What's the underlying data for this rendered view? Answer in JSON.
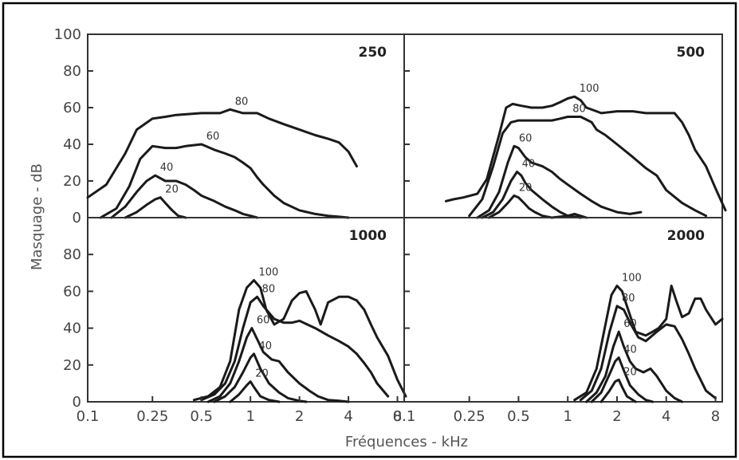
{
  "chart_data": {
    "type": "line",
    "xlabel": "Fréquences - kHz",
    "ylabel": "Masquage - dB",
    "x_scale": "log",
    "ylim": [
      0,
      100
    ],
    "grid": false,
    "x_ticks": [
      "0.1",
      "0.25",
      "0.5",
      "1",
      "2",
      "4",
      "8"
    ],
    "x_tick_values": [
      0.1,
      0.25,
      0.5,
      1,
      2,
      4,
      8
    ],
    "y_ticks_top": [
      "0",
      "20",
      "40",
      "60",
      "80",
      "100"
    ],
    "y_ticks_bottom": [
      "0",
      "20",
      "40",
      "60",
      "80"
    ],
    "panels": [
      {
        "title": "250",
        "xlim": [
          0.1,
          8.8
        ],
        "series": [
          {
            "name": "80",
            "x": [
              0.1,
              0.13,
              0.17,
              0.2,
              0.25,
              0.3,
              0.35,
              0.5,
              0.65,
              0.75,
              0.9,
              1.1,
              1.3,
              1.6,
              2,
              2.5,
              3,
              3.5,
              4,
              4.5
            ],
            "values": [
              11,
              18,
              35,
              48,
              54,
              55,
              56,
              57,
              57,
              59,
              57,
              57,
              54,
              51,
              48,
              45,
              43,
              41,
              36,
              28
            ]
          },
          {
            "name": "60",
            "x": [
              0.12,
              0.15,
              0.18,
              0.21,
              0.25,
              0.3,
              0.35,
              0.4,
              0.5,
              0.6,
              0.7,
              0.8,
              0.9,
              1,
              1.1,
              1.2,
              1.4,
              1.6,
              2,
              2.5,
              3,
              3.5,
              4
            ],
            "values": [
              0,
              5,
              17,
              32,
              39,
              38,
              38,
              39,
              40,
              37,
              35,
              33,
              30,
              27,
              22,
              18,
              12,
              8,
              4,
              2,
              1,
              0.5,
              0
            ]
          },
          {
            "name": "40",
            "x": [
              0.14,
              0.17,
              0.2,
              0.23,
              0.26,
              0.3,
              0.35,
              0.4,
              0.45,
              0.5,
              0.6,
              0.7,
              0.8,
              0.9,
              1,
              1.1
            ],
            "values": [
              0,
              6,
              14,
              20,
              23,
              20,
              20,
              18,
              15,
              12,
              9,
              6,
              4,
              2,
              1,
              0
            ]
          },
          {
            "name": "20",
            "x": [
              0.17,
              0.2,
              0.23,
              0.26,
              0.28,
              0.3,
              0.33,
              0.36,
              0.4
            ],
            "values": [
              0,
              3,
              7,
              10,
              11,
              8,
              4,
              1,
              0
            ]
          }
        ]
      },
      {
        "title": "500",
        "xlim": [
          0.1,
          8.8
        ],
        "series": [
          {
            "name": "100",
            "x": [
              0.18,
              0.2,
              0.23,
              0.28,
              0.32,
              0.38,
              0.42,
              0.46,
              0.52,
              0.6,
              0.7,
              0.8,
              0.9,
              1,
              1.1,
              1.2,
              1.3,
              1.5,
              1.6,
              2,
              2.5,
              3,
              3.5,
              4,
              4.5,
              5,
              5.5,
              6,
              7,
              8,
              9.2
            ],
            "values": [
              9,
              10,
              11,
              13,
              21,
              45,
              60,
              62,
              61,
              60,
              60,
              61,
              63,
              65,
              66,
              64,
              60,
              58,
              57,
              58,
              58,
              57,
              57,
              57,
              57,
              52,
              45,
              37,
              28,
              16,
              4
            ]
          },
          {
            "name": "80",
            "x": [
              0.25,
              0.3,
              0.35,
              0.4,
              0.45,
              0.5,
              0.6,
              0.7,
              0.8,
              0.9,
              1,
              1.2,
              1.4,
              1.5,
              1.7,
              2,
              2.5,
              3,
              3.5,
              4,
              5,
              6,
              7
            ],
            "values": [
              1,
              10,
              28,
              46,
              52,
              53,
              53,
              53,
              53,
              54,
              55,
              55,
              52,
              48,
              45,
              40,
              33,
              27,
              23,
              15,
              8,
              4,
              1
            ]
          },
          {
            "name": "60",
            "x": [
              0.28,
              0.33,
              0.38,
              0.43,
              0.47,
              0.5,
              0.55,
              0.6,
              0.7,
              0.8,
              0.9,
              1,
              1.2,
              1.4,
              1.6,
              2,
              2.4,
              2.8
            ],
            "values": [
              0,
              4,
              14,
              30,
              39,
              38,
              33,
              30,
              28,
              25,
              21,
              18,
              13,
              9,
              6,
              3,
              2,
              3
            ]
          },
          {
            "name": "40",
            "x": [
              0.3,
              0.35,
              0.4,
              0.45,
              0.49,
              0.52,
              0.55,
              0.6,
              0.7,
              0.8,
              0.9,
              1,
              1.1,
              1.3
            ],
            "values": [
              0,
              3,
              10,
              20,
              25,
              23,
              19,
              15,
              10,
              6,
              3,
              1,
              2,
              0
            ]
          },
          {
            "name": "20",
            "x": [
              0.33,
              0.38,
              0.43,
              0.47,
              0.5,
              0.54,
              0.58,
              0.63,
              0.7,
              0.8,
              1,
              1.2
            ],
            "values": [
              0,
              3,
              8,
              12,
              11,
              8,
              5,
              3,
              1,
              0,
              1,
              0
            ]
          }
        ]
      },
      {
        "title": "1000",
        "xlim": [
          0.1,
          8.8
        ],
        "series": [
          {
            "name": "100",
            "x": [
              0.45,
              0.55,
              0.65,
              0.75,
              0.85,
              0.95,
              1.05,
              1.15,
              1.25,
              1.4,
              1.6,
              1.8,
              2,
              2.2,
              2.5,
              2.7,
              3,
              3.5,
              4,
              4.5,
              5,
              5.5,
              6,
              7,
              8,
              9
            ],
            "values": [
              1,
              3,
              8,
              22,
              50,
              62,
              66,
              62,
              50,
              42,
              45,
              55,
              59,
              60,
              50,
              42,
              54,
              57,
              57,
              55,
              50,
              42,
              35,
              25,
              12,
              3
            ]
          },
          {
            "name": "80",
            "x": [
              0.5,
              0.6,
              0.7,
              0.8,
              0.9,
              1,
              1.1,
              1.2,
              1.4,
              1.6,
              1.8,
              2,
              2.5,
              3,
              3.5,
              4,
              4.5,
              5,
              5.5,
              6,
              7
            ],
            "values": [
              1,
              4,
              10,
              22,
              40,
              54,
              57,
              52,
              45,
              43,
              43,
              44,
              40,
              36,
              33,
              30,
              26,
              21,
              16,
              10,
              3
            ]
          },
          {
            "name": "60",
            "x": [
              0.55,
              0.65,
              0.75,
              0.85,
              0.95,
              1.02,
              1.1,
              1.2,
              1.35,
              1.5,
              1.7,
              2,
              2.3,
              2.6,
              3,
              3.5,
              4
            ],
            "values": [
              0,
              3,
              10,
              22,
              35,
              40,
              34,
              27,
              23,
              22,
              16,
              10,
              6,
              3,
              1,
              0.5,
              0
            ]
          },
          {
            "name": "40",
            "x": [
              0.6,
              0.7,
              0.8,
              0.9,
              1,
              1.05,
              1.15,
              1.3,
              1.5,
              1.7,
              2,
              2.2
            ],
            "values": [
              0,
              3,
              8,
              16,
              24,
              26,
              18,
              10,
              5,
              2,
              0.5,
              0
            ]
          },
          {
            "name": "20",
            "x": [
              0.75,
              0.85,
              0.95,
              1,
              1.05,
              1.15,
              1.3,
              1.5
            ],
            "values": [
              0,
              4,
              9,
              11,
              8,
              3,
              1,
              0
            ]
          }
        ]
      },
      {
        "title": "2000",
        "xlim": [
          0.1,
          8.8
        ],
        "series": [
          {
            "name": "100",
            "x": [
              1.1,
              1.3,
              1.5,
              1.7,
              1.85,
              2,
              2.15,
              2.3,
              2.6,
              3,
              3.3,
              3.6,
              4,
              4.3,
              4.6,
              5,
              5.5,
              6,
              6.5,
              7,
              8,
              8.8
            ],
            "values": [
              1,
              5,
              18,
              42,
              58,
              63,
              60,
              52,
              38,
              36,
              38,
              40,
              45,
              63,
              55,
              46,
              48,
              56,
              56,
              50,
              42,
              45
            ]
          },
          {
            "name": "80",
            "x": [
              1.2,
              1.4,
              1.6,
              1.8,
              2,
              2.2,
              2.4,
              2.7,
              3,
              3.5,
              4,
              4.5,
              5,
              5.5,
              6,
              7,
              8
            ],
            "values": [
              1,
              6,
              18,
              38,
              52,
              50,
              43,
              35,
              33,
              38,
              42,
              41,
              34,
              26,
              18,
              6,
              2
            ]
          },
          {
            "name": "60",
            "x": [
              1.3,
              1.5,
              1.7,
              1.9,
              2.05,
              2.2,
              2.4,
              2.6,
              2.9,
              3.2,
              3.5,
              4,
              4.5,
              5
            ],
            "values": [
              0,
              5,
              14,
              30,
              38,
              30,
              22,
              18,
              16,
              18,
              14,
              6,
              2,
              0
            ]
          },
          {
            "name": "40",
            "x": [
              1.4,
              1.6,
              1.8,
              1.95,
              2.05,
              2.2,
              2.4,
              2.7,
              3,
              3.3
            ],
            "values": [
              0,
              5,
              15,
              22,
              24,
              17,
              9,
              4,
              1,
              0
            ]
          },
          {
            "name": "20",
            "x": [
              1.6,
              1.8,
              1.95,
              2.05,
              2.15,
              2.3,
              2.6
            ],
            "values": [
              0,
              6,
              11,
              12,
              8,
              3,
              0
            ]
          }
        ]
      }
    ]
  }
}
